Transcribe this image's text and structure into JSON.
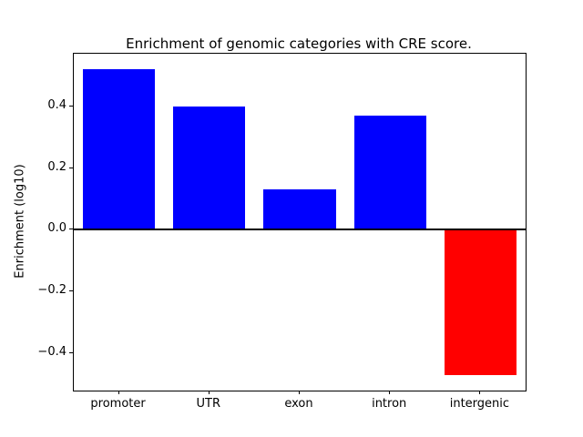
{
  "chart_data": {
    "type": "bar",
    "title": "Enrichment of genomic categories with CRE score.",
    "ylabel": "Enrichment (log10)",
    "xlabel": "",
    "categories": [
      "promoter",
      "UTR",
      "exon",
      "intron",
      "intergenic"
    ],
    "values": [
      0.52,
      0.4,
      0.13,
      0.37,
      -0.47
    ],
    "bar_colors": [
      "#0000ff",
      "#0000ff",
      "#0000ff",
      "#0000ff",
      "#ff0000"
    ],
    "positive_color": "#0000ff",
    "negative_color": "#ff0000",
    "ylim": [
      -0.52,
      0.57
    ],
    "yticks": [
      -0.4,
      -0.2,
      0.0,
      0.2,
      0.4
    ],
    "ytick_labels": [
      "−0.4",
      "−0.2",
      "0.0",
      "0.2",
      "0.4"
    ],
    "zero_line": true,
    "bar_width_fraction": 0.8,
    "grid": false,
    "legend": false
  }
}
